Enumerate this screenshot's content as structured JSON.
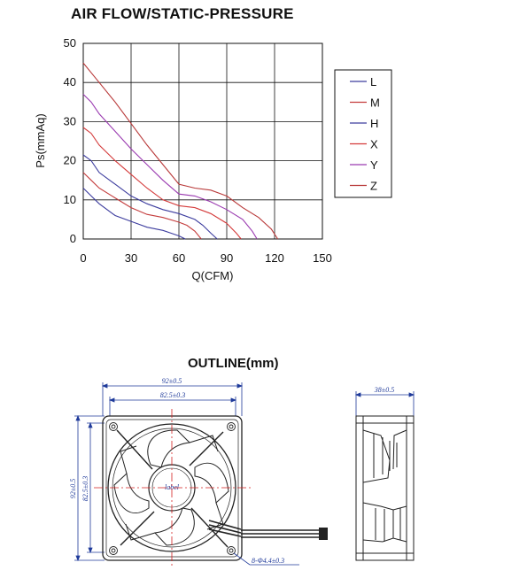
{
  "chart_title": "AIR FLOW/STATIC-PRESSURE",
  "chart_data": {
    "type": "line",
    "xlabel": "Q(CFM)",
    "ylabel": "Ps(mmAq)",
    "xlim": [
      0,
      150
    ],
    "ylim": [
      0,
      50
    ],
    "xticks": [
      "0",
      "30",
      "60",
      "90",
      "120",
      "150"
    ],
    "yticks": [
      "0",
      "10",
      "20",
      "30",
      "40",
      "50"
    ],
    "grid": true,
    "legend_position": "right",
    "series": [
      {
        "name": "L",
        "color": "#3c3c9e",
        "points": [
          [
            0,
            13
          ],
          [
            5,
            11
          ],
          [
            10,
            9
          ],
          [
            20,
            6
          ],
          [
            30,
            4.5
          ],
          [
            40,
            3
          ],
          [
            50,
            2.2
          ],
          [
            55,
            1.5
          ],
          [
            60,
            0.8
          ],
          [
            64,
            0
          ]
        ]
      },
      {
        "name": "M",
        "color": "#c43c3c",
        "points": [
          [
            0,
            17
          ],
          [
            5,
            15
          ],
          [
            10,
            13
          ],
          [
            20,
            10.5
          ],
          [
            30,
            8
          ],
          [
            40,
            6.3
          ],
          [
            50,
            5.5
          ],
          [
            60,
            4.3
          ],
          [
            65,
            3.5
          ],
          [
            70,
            2
          ],
          [
            74,
            0
          ]
        ]
      },
      {
        "name": "H",
        "color": "#3c3c9e",
        "points": [
          [
            0,
            21.5
          ],
          [
            5,
            20
          ],
          [
            10,
            17
          ],
          [
            20,
            14
          ],
          [
            30,
            11
          ],
          [
            40,
            9
          ],
          [
            50,
            7.5
          ],
          [
            60,
            6.5
          ],
          [
            70,
            5
          ],
          [
            75,
            3.5
          ],
          [
            80,
            1.5
          ],
          [
            84,
            0
          ]
        ]
      },
      {
        "name": "X",
        "color": "#d43a3a",
        "points": [
          [
            0,
            28.5
          ],
          [
            5,
            27
          ],
          [
            10,
            24
          ],
          [
            20,
            20
          ],
          [
            30,
            16.5
          ],
          [
            40,
            13
          ],
          [
            50,
            10
          ],
          [
            60,
            8.5
          ],
          [
            70,
            8
          ],
          [
            80,
            6.5
          ],
          [
            90,
            4
          ],
          [
            96,
            1.5
          ],
          [
            99,
            0
          ]
        ]
      },
      {
        "name": "Y",
        "color": "#9a3ab0",
        "points": [
          [
            0,
            37
          ],
          [
            5,
            35
          ],
          [
            10,
            32
          ],
          [
            20,
            27.5
          ],
          [
            30,
            23
          ],
          [
            40,
            19
          ],
          [
            50,
            15
          ],
          [
            60,
            11.5
          ],
          [
            70,
            11
          ],
          [
            80,
            9.5
          ],
          [
            90,
            7.5
          ],
          [
            100,
            5
          ],
          [
            106,
            2
          ],
          [
            109,
            0
          ]
        ]
      },
      {
        "name": "Z",
        "color": "#b83838",
        "points": [
          [
            0,
            45
          ],
          [
            5,
            42.5
          ],
          [
            10,
            40
          ],
          [
            20,
            35
          ],
          [
            30,
            29.5
          ],
          [
            40,
            24
          ],
          [
            50,
            19
          ],
          [
            60,
            14
          ],
          [
            70,
            13
          ],
          [
            80,
            12.5
          ],
          [
            90,
            11
          ],
          [
            100,
            8
          ],
          [
            110,
            5.5
          ],
          [
            118,
            2.5
          ],
          [
            122,
            0
          ]
        ]
      }
    ]
  },
  "outline": {
    "title": "OUTLINE(mm)",
    "dim_width_outer": "92±0.5",
    "dim_width_inner": "82.5±0.3",
    "dim_height_outer": "92±0.5",
    "dim_height_inner": "82.5±0.3",
    "dim_depth": "38±0.5",
    "dim_holes": "8-Φ4.4±0.3",
    "fan_label": "label"
  },
  "colors": {
    "dimension": "#1f3a9a",
    "center_line": "#d42020",
    "fan_outline": "#222222"
  }
}
